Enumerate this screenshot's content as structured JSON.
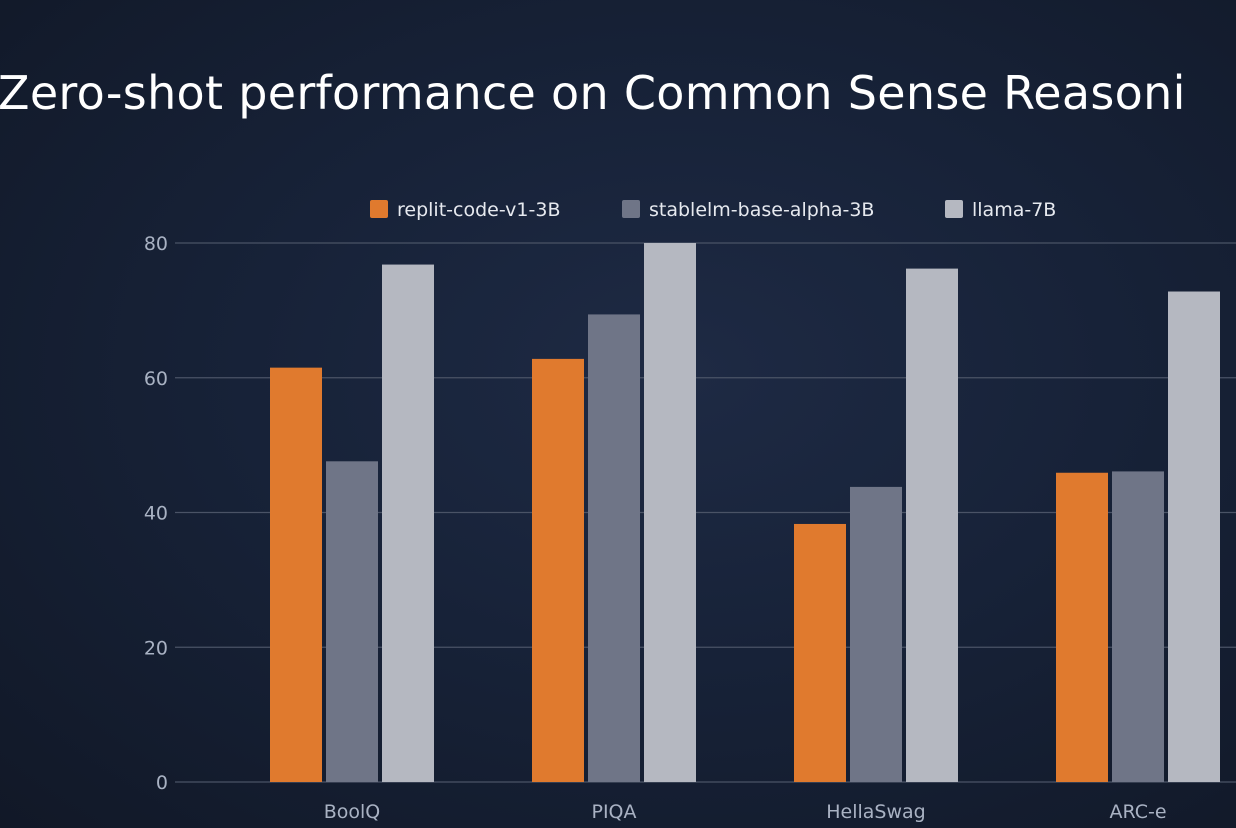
{
  "chart_data": {
    "type": "bar",
    "title": "Zero-shot performance on Common Sense Reasoni",
    "xlabel": "",
    "ylabel": "",
    "categories": [
      "BoolQ",
      "PIQA",
      "HellaSwag",
      "ARC-e"
    ],
    "series": [
      {
        "name": "replit-code-v1-3B",
        "values": [
          61.5,
          62.8,
          38.3,
          45.9
        ],
        "color": "#e07a2e"
      },
      {
        "name": "stablelm-base-alpha-3B",
        "values": [
          47.6,
          69.4,
          43.8,
          46.1
        ],
        "color": "#6f7587"
      },
      {
        "name": "llama-7B",
        "values": [
          76.8,
          80.0,
          76.2,
          72.8
        ],
        "color": "#b5b8c1"
      }
    ],
    "ylim": [
      0,
      80
    ],
    "yticks": [
      "0",
      "20",
      "40",
      "60",
      "80"
    ],
    "grid": true,
    "legend_position": "top"
  }
}
